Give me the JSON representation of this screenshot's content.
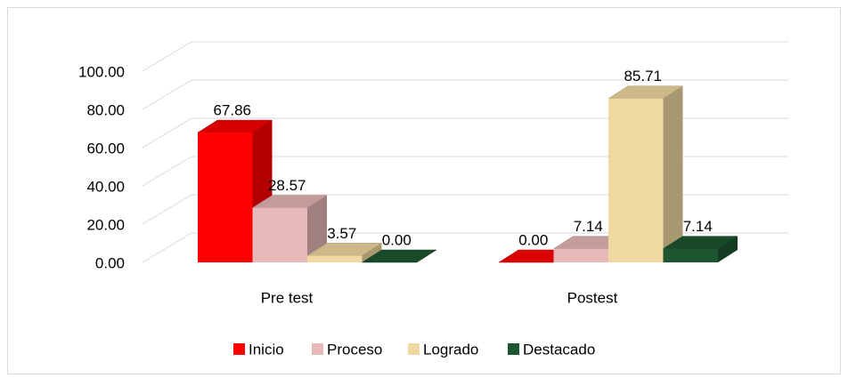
{
  "chart_data": {
    "type": "bar3d",
    "categories": [
      "Pre test",
      "Postest"
    ],
    "series": [
      {
        "name": "Inicio",
        "color": "#ff0000",
        "values": [
          67.86,
          0
        ],
        "value_labels": [
          "67.86",
          "0.00"
        ]
      },
      {
        "name": "Proceso",
        "color": "#e6b8b7",
        "values": [
          28.57,
          7.14
        ],
        "value_labels": [
          "28.57",
          "7.14"
        ]
      },
      {
        "name": "Logrado",
        "color": "#f0d9a0",
        "values": [
          3.57,
          85.71
        ],
        "value_labels": [
          "3.57",
          "85.71"
        ]
      },
      {
        "name": "Destacado",
        "color": "#1e5631",
        "values": [
          0,
          7.14
        ],
        "value_labels": [
          "0.00",
          "7.14"
        ]
      }
    ],
    "ylim": [
      0,
      100
    ],
    "yticks": [
      {
        "value": 0,
        "label": "0.00"
      },
      {
        "value": 20,
        "label": "20.00"
      },
      {
        "value": 40,
        "label": "40.00"
      },
      {
        "value": 60,
        "label": "60.00"
      },
      {
        "value": 80,
        "label": "80.00"
      },
      {
        "value": 100,
        "label": "100.00"
      }
    ],
    "grid": true,
    "legend": "bottom"
  }
}
